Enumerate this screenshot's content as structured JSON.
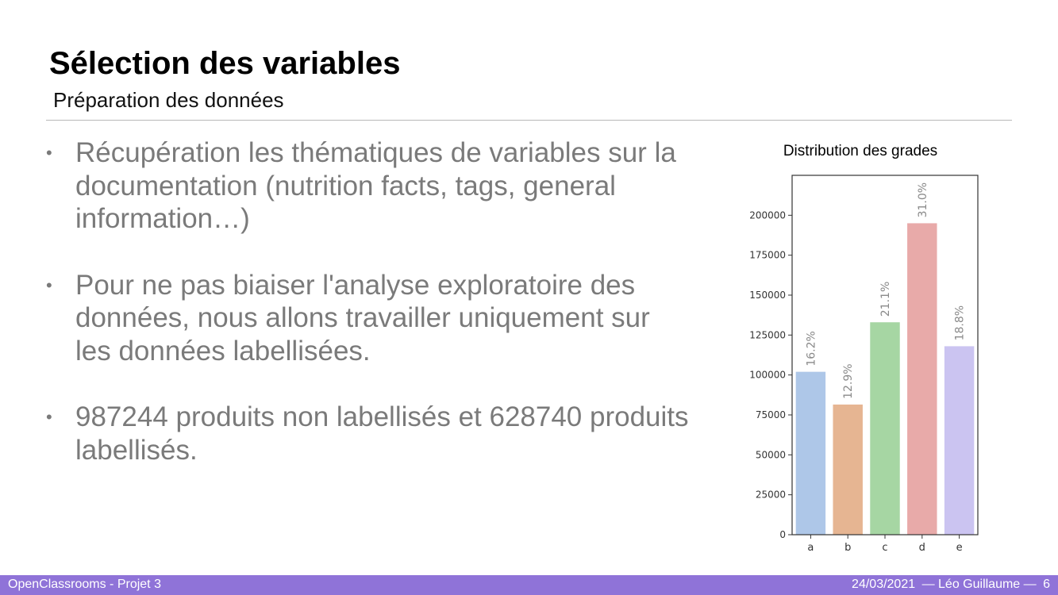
{
  "slide": {
    "title": "Sélection des variables",
    "subtitle": "Préparation des données",
    "bullet_marker": "•",
    "bullets": [
      "Récupération les thématiques de variables sur la documentation (nutrition facts, tags, general information…)",
      "Pour ne pas biaiser l'analyse exploratoire des données, nous allons travailler uniquement sur les données labellisées.",
      "987244 produits non labellisés et 628740 produits labellisés."
    ]
  },
  "chart_title": "Distribution des grades",
  "chart_data": {
    "type": "bar",
    "title": "Distribution des grades",
    "categories": [
      "a",
      "b",
      "c",
      "d",
      "e"
    ],
    "values": [
      102000,
      81500,
      133000,
      195000,
      118000
    ],
    "labels": [
      "16.2%",
      "12.9%",
      "21.1%",
      "31.0%",
      "18.8%"
    ],
    "colors": [
      "#aec7e8",
      "#e6b592",
      "#a6d6a3",
      "#e8aaa9",
      "#cbc4f1"
    ],
    "yticks": [
      0,
      25000,
      50000,
      75000,
      100000,
      125000,
      150000,
      175000,
      200000
    ],
    "ylim": [
      0,
      225000
    ],
    "grid": false,
    "legend": "none",
    "xlabel": "",
    "ylabel": ""
  },
  "footer": {
    "left": "OpenClassrooms - Projet 3",
    "date": "24/03/2021",
    "author": "— Léo Guillaume —",
    "page": "6",
    "color": "#8f73d8"
  }
}
